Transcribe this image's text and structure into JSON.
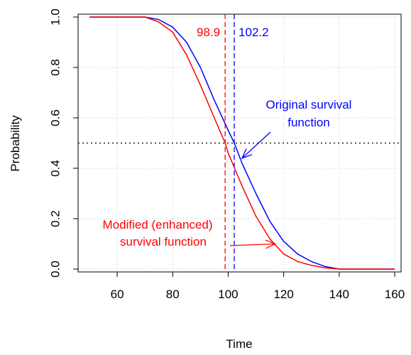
{
  "chart_data": {
    "type": "line",
    "xlabel": "Time",
    "ylabel": "Probability",
    "xlim": [
      50,
      160
    ],
    "ylim": [
      0,
      1
    ],
    "x_ticks": [
      60,
      80,
      100,
      120,
      140,
      160
    ],
    "y_ticks": [
      0.0,
      0.2,
      0.4,
      0.6,
      0.8,
      1.0
    ],
    "y_tick_labels": [
      "0.0",
      "0.2",
      "0.4",
      "0.6",
      "0.8",
      "1.0"
    ],
    "grid": true,
    "series": [
      {
        "color": "#0000ff",
        "x": [
          50,
          70,
          75,
          80,
          85,
          90,
          95,
          100,
          102.2,
          105,
          110,
          115,
          120,
          125,
          130,
          135,
          140,
          145,
          150,
          155,
          160
        ],
        "y": [
          1.0,
          1.0,
          0.99,
          0.96,
          0.9,
          0.8,
          0.67,
          0.55,
          0.5,
          0.42,
          0.3,
          0.19,
          0.11,
          0.06,
          0.03,
          0.01,
          0.0,
          0.0,
          0.0,
          0.0,
          0.0
        ]
      },
      {
        "color": "#ff0000",
        "x": [
          50,
          70,
          75,
          80,
          85,
          90,
          95,
          98.9,
          100,
          105,
          110,
          115,
          120,
          125,
          130,
          135,
          140,
          145,
          150,
          155,
          160
        ],
        "y": [
          1.0,
          1.0,
          0.98,
          0.94,
          0.85,
          0.73,
          0.6,
          0.5,
          0.46,
          0.33,
          0.21,
          0.12,
          0.06,
          0.03,
          0.015,
          0.005,
          0.0,
          0.0,
          0.0,
          0.0,
          0.0
        ]
      }
    ],
    "reference_lines": [
      {
        "orientation": "horizontal",
        "value": 0.5,
        "color": "#000000",
        "dash": "dotted"
      },
      {
        "orientation": "vertical",
        "value": 98.9,
        "color": "#ff0000",
        "dash": "dashed",
        "label": "98.9"
      },
      {
        "orientation": "vertical",
        "value": 102.2,
        "color": "#0000ff",
        "dash": "dashed",
        "label": "102.2"
      }
    ],
    "annotations": [
      {
        "lines": [
          "Original survival",
          "function"
        ],
        "color": "#0000ff",
        "arrow_to": [
          105,
          0.44
        ]
      },
      {
        "lines": [
          "Modified (enhanced)",
          "survival function"
        ],
        "color": "#ff0000",
        "arrow_to": [
          117,
          0.1
        ]
      }
    ]
  }
}
